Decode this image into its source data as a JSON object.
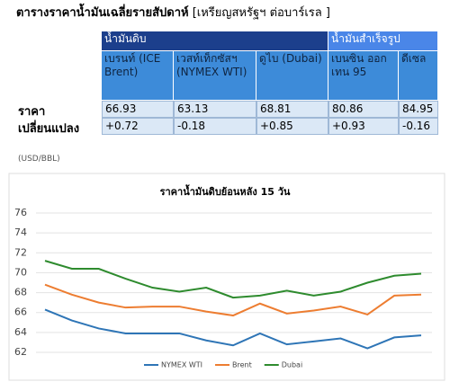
{
  "header": {
    "title": "ตารางราคาน้ำมันเฉลี่ยรายสัปดาห์",
    "subtitle": "[เหรียญสหรัฐฯ ต่อบาร์เรล ]"
  },
  "table": {
    "groups": [
      "น้ำมันดิบ",
      "น้ำมันสำเร็จรูป"
    ],
    "columns": [
      "เบรนท์ (ICE Brent)",
      "เวสท์เท็กซัสฯ (NYMEX WTI)",
      "ดูไบ (Dubai)",
      "เบนซิน ออกเทน 95",
      "ดีเซล"
    ],
    "row_labels": [
      "ราคา",
      "เปลี่ยนแปลง"
    ],
    "rows": [
      [
        66.93,
        63.13,
        68.81,
        80.86,
        84.95
      ],
      [
        "+0.72",
        "-0.18",
        "+0.85",
        "+0.93",
        "-0.16"
      ]
    ]
  },
  "unit": "(USD/BBL)",
  "chart_data": {
    "type": "line",
    "title": "ราคาน้ำมันดิบย้อนหลัง 15 วัน",
    "categories": [
      null,
      null,
      null,
      null,
      null,
      null,
      null,
      null,
      null,
      null,
      null,
      null,
      null,
      null,
      null
    ],
    "series": [
      {
        "name": "NYMEX WTI",
        "color": "#2e75b6",
        "values": [
          66.3,
          65.2,
          64.4,
          63.9,
          63.9,
          63.9,
          63.2,
          62.7,
          63.9,
          62.8,
          63.1,
          63.4,
          62.4,
          63.5,
          63.7
        ]
      },
      {
        "name": "Brent",
        "color": "#ed7d31",
        "values": [
          68.8,
          67.8,
          67.0,
          66.5,
          66.6,
          66.6,
          66.1,
          65.7,
          66.9,
          65.9,
          66.2,
          66.6,
          65.8,
          67.7,
          67.8
        ]
      },
      {
        "name": "Dubai",
        "color": "#2e8b2e",
        "values": [
          71.2,
          70.4,
          70.4,
          69.4,
          68.5,
          68.1,
          68.5,
          67.5,
          67.7,
          68.2,
          67.7,
          68.1,
          69.0,
          69.7,
          69.9
        ]
      }
    ],
    "ylim": [
      62,
      76
    ],
    "yticks": [
      62,
      64,
      66,
      68,
      70,
      72,
      74,
      76
    ],
    "grid": true,
    "legend": "bottom"
  }
}
